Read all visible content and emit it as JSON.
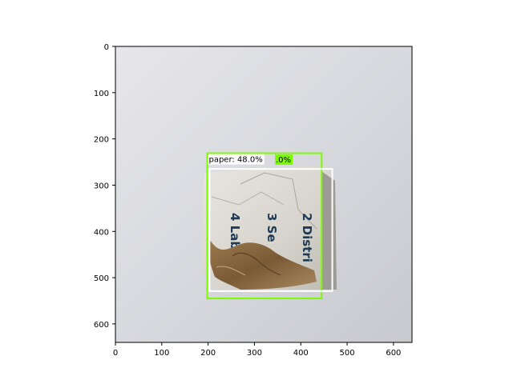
{
  "axes": {
    "x_ticks": [
      "0",
      "100",
      "200",
      "300",
      "400",
      "500",
      "600"
    ],
    "y_ticks": [
      "0",
      "100",
      "200",
      "300",
      "400",
      "500",
      "600"
    ],
    "x_range": [
      0,
      640
    ],
    "y_range": [
      0,
      640
    ],
    "y_inverted": true
  },
  "image": {
    "background_color": "#d9dadf",
    "object": "torn cardboard box with printed text and brown paper",
    "printed_text": [
      "2 Distri",
      "3 Se",
      "4 Label"
    ]
  },
  "detections": [
    {
      "label": "paper: 48.0%",
      "color": "#7cfc00",
      "box_data": [
        198,
        231,
        445,
        545
      ]
    },
    {
      "label": ".0%",
      "color": "#ffffff",
      "box_data": [
        203,
        265,
        468,
        529
      ]
    }
  ],
  "colors": {
    "green_box": "#7cfc00",
    "white_box": "#ffffff",
    "axis": "#000000"
  }
}
